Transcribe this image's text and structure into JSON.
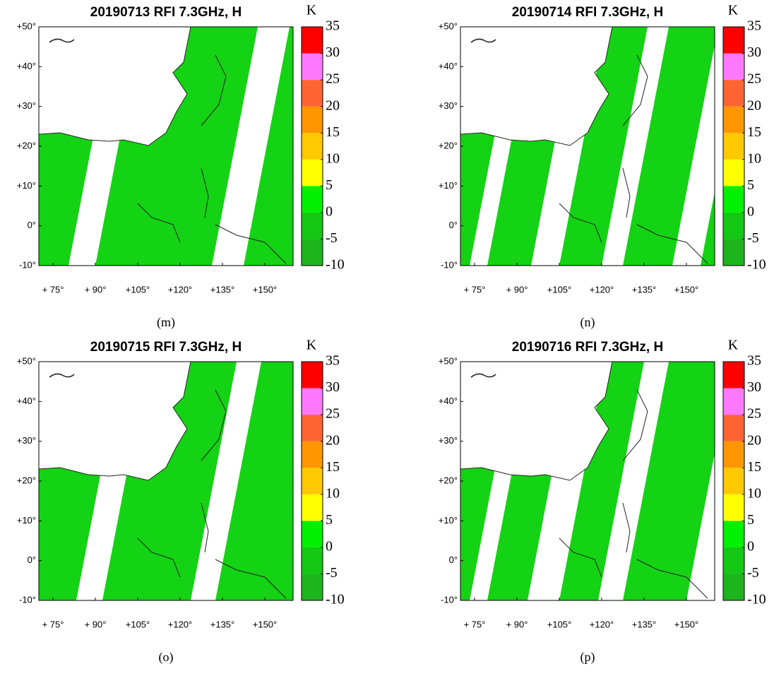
{
  "panels": [
    {
      "title": "20190713 RFI 7.3GHz, H",
      "label": "(m)"
    },
    {
      "title": "20190714 RFI 7.3GHz, H",
      "label": "(n)"
    },
    {
      "title": "20190715 RFI 7.3GHz, H",
      "label": "(o)"
    },
    {
      "title": "20190716 RFI 7.3GHz, H",
      "label": "(p)"
    }
  ],
  "colorbar": {
    "unit": "K",
    "ticks": [
      -10,
      -5,
      0,
      5,
      10,
      15,
      20,
      25,
      30,
      35
    ],
    "colors": [
      "#1eb41e",
      "#14c814",
      "#00f000",
      "#ffff00",
      "#ffc800",
      "#ff9600",
      "#ff6432",
      "#ff78ff",
      "#ff0000"
    ]
  },
  "lat_ticks": [
    {
      "value": 50,
      "label": "+50°"
    },
    {
      "value": 40,
      "label": "+40°"
    },
    {
      "value": 30,
      "label": "+30°"
    },
    {
      "value": 20,
      "label": "+20°"
    },
    {
      "value": 10,
      "label": "+10°"
    },
    {
      "value": 0,
      "label": "0°"
    },
    {
      "value": -10,
      "label": "-10°"
    }
  ],
  "lon_ticks": [
    {
      "value": 75,
      "label": "+ 75°"
    },
    {
      "value": 90,
      "label": "+ 90°"
    },
    {
      "value": 105,
      "label": "+105°"
    },
    {
      "value": 120,
      "label": "+120°"
    },
    {
      "value": 135,
      "label": "+135°"
    },
    {
      "value": 150,
      "label": "+150°"
    }
  ],
  "lonlim": [
    70,
    160
  ],
  "latlim": [
    -10,
    50
  ]
}
